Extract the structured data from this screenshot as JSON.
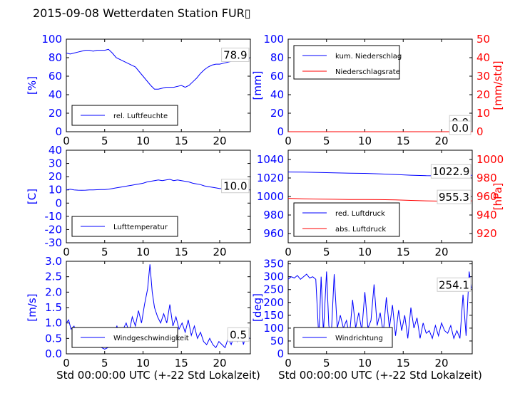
{
  "figure": {
    "title": "2015-09-08 Wetterdaten Station FUR▯",
    "xlabel": "Std 00:00:00 UTC (+-22 Std Lokalzeit)"
  },
  "chart_data": [
    {
      "id": "humidity",
      "type": "line",
      "ylabel": "[%]",
      "ylim": [
        0,
        100
      ],
      "yticks": [
        0,
        20,
        40,
        60,
        80,
        100
      ],
      "xlim": [
        0,
        24
      ],
      "xticks": [
        0,
        5,
        10,
        15,
        20
      ],
      "legend": "lower-left",
      "grid": false,
      "last_value_label": "78.9",
      "series": [
        {
          "name": "rel. Luftfeuchte",
          "color": "#0000ff",
          "x": [
            0,
            0.5,
            1,
            1.5,
            2,
            2.5,
            3,
            3.5,
            4,
            4.5,
            5,
            5.5,
            6,
            6.5,
            7,
            7.5,
            8,
            8.5,
            9,
            9.5,
            10,
            10.5,
            11,
            11.5,
            12,
            12.5,
            13,
            13.5,
            14,
            14.5,
            15,
            15.5,
            16,
            16.5,
            17,
            17.5,
            18,
            18.5,
            19,
            19.5,
            20,
            20.5,
            21,
            21.5,
            22,
            22.5,
            23,
            23.5,
            23.9
          ],
          "y": [
            85,
            84,
            85,
            86,
            87,
            88,
            88,
            87,
            88,
            88,
            88,
            89,
            85,
            80,
            78,
            76,
            74,
            72,
            70,
            65,
            60,
            55,
            50,
            46,
            46,
            47,
            48,
            48,
            48,
            49,
            50,
            48,
            50,
            54,
            58,
            63,
            67,
            70,
            72,
            73,
            73,
            74,
            75,
            76,
            77,
            78,
            78,
            79,
            78.9
          ]
        }
      ]
    },
    {
      "id": "precipitation",
      "type": "line",
      "ylabel": "[mm]",
      "ylim": [
        0,
        100
      ],
      "yticks": [
        0,
        20,
        40,
        60,
        80,
        100
      ],
      "y2label": "[mm/std]",
      "y2lim": [
        0,
        50
      ],
      "y2ticks": [
        0,
        10,
        20,
        30,
        40,
        50
      ],
      "xlim": [
        0,
        24
      ],
      "xticks": [
        0,
        5,
        10,
        15,
        20
      ],
      "legend": "upper-left",
      "grid": false,
      "last_value_label": "0.0",
      "last_value_label_2": "0.0",
      "series": [
        {
          "name": "kum. Niederschlag",
          "color": "#0000ff",
          "axis": "left",
          "x": [
            0,
            24
          ],
          "y": [
            0,
            0
          ]
        },
        {
          "name": "Niederschlagsrate",
          "color": "#ff0000",
          "axis": "right",
          "x": [
            0,
            24
          ],
          "y": [
            0,
            0
          ]
        }
      ]
    },
    {
      "id": "temperature",
      "type": "line",
      "ylabel": "[C]",
      "ylim": [
        -30,
        40
      ],
      "yticks": [
        -30,
        -20,
        -10,
        0,
        10,
        20,
        30,
        40
      ],
      "xlim": [
        0,
        24
      ],
      "xticks": [
        0,
        5,
        10,
        15,
        20
      ],
      "legend": "lower-left",
      "grid": false,
      "last_value_label": "10.0",
      "series": [
        {
          "name": "Lufttemperatur",
          "color": "#0000ff",
          "x": [
            0,
            0.5,
            1,
            1.5,
            2,
            2.5,
            3,
            3.5,
            4,
            4.5,
            5,
            5.5,
            6,
            6.5,
            7,
            7.5,
            8,
            8.5,
            9,
            9.5,
            10,
            10.5,
            11,
            11.5,
            12,
            12.5,
            13,
            13.5,
            14,
            14.5,
            15,
            15.5,
            16,
            16.5,
            17,
            17.5,
            18,
            18.5,
            19,
            19.5,
            20,
            20.5,
            21,
            21.5,
            22,
            22.5,
            23,
            23.5,
            23.9
          ],
          "y": [
            10,
            10.5,
            10,
            9.8,
            9.7,
            9.8,
            10,
            10,
            10.1,
            10.2,
            10.3,
            10.5,
            11,
            11.5,
            12,
            12.5,
            13,
            13.5,
            14,
            14.5,
            15,
            16,
            16.5,
            17,
            17.5,
            17,
            17.5,
            18,
            17,
            17.5,
            17,
            16.5,
            16,
            15,
            14.5,
            14,
            13,
            12.5,
            12,
            11.5,
            11,
            11,
            10.5,
            10.5,
            10.2,
            10,
            10,
            10.1,
            10
          ]
        }
      ]
    },
    {
      "id": "pressure",
      "type": "line",
      "ylabel": "",
      "ylim": [
        950,
        1050
      ],
      "yticks": [
        960,
        980,
        1000,
        1020,
        1040
      ],
      "y2label": "[hPa]",
      "y2lim": [
        910,
        1010
      ],
      "y2ticks": [
        920,
        940,
        960,
        980,
        1000
      ],
      "xlim": [
        0,
        24
      ],
      "xticks": [
        0,
        5,
        10,
        15,
        20
      ],
      "legend": "lower-left",
      "grid": false,
      "last_value_label": "1022.9",
      "last_value_label_2": "955.3",
      "series": [
        {
          "name": "red. Luftdruck",
          "color": "#0000ff",
          "axis": "left",
          "x": [
            0,
            2,
            4,
            6,
            8,
            10,
            12,
            14,
            16,
            18,
            20,
            22,
            24
          ],
          "y": [
            1026.5,
            1026.3,
            1026.0,
            1025.5,
            1025.2,
            1025.0,
            1024.5,
            1023.8,
            1023.0,
            1022.5,
            1022.3,
            1022.6,
            1022.9
          ]
        },
        {
          "name": "abs. Luftdruck",
          "color": "#ff0000",
          "axis": "right",
          "x": [
            0,
            2,
            4,
            6,
            8,
            10,
            12,
            14,
            16,
            18,
            20,
            22,
            24
          ],
          "y": [
            958.0,
            957.5,
            957.2,
            957.0,
            956.8,
            956.8,
            956.6,
            956.3,
            955.8,
            955.3,
            955.0,
            955.2,
            955.3
          ]
        }
      ]
    },
    {
      "id": "windspeed",
      "type": "line",
      "ylabel": "[m/s]",
      "ylim": [
        0,
        3
      ],
      "yticks": [
        0.0,
        0.5,
        1.0,
        1.5,
        2.0,
        2.5,
        3.0
      ],
      "xlim": [
        0,
        24
      ],
      "xticks": [
        0,
        5,
        10,
        15,
        20
      ],
      "legend": "lower-left",
      "grid": false,
      "last_value_label": "0.5",
      "series": [
        {
          "name": "Windgeschwindigkeit",
          "color": "#0000ff",
          "x": [
            0,
            0.3,
            0.6,
            1,
            1.4,
            1.8,
            2.2,
            2.6,
            3,
            3.4,
            3.8,
            4.2,
            4.6,
            5,
            5.4,
            5.8,
            6.2,
            6.6,
            7,
            7.4,
            7.8,
            8.2,
            8.6,
            9,
            9.4,
            9.8,
            10.2,
            10.6,
            10.9,
            11.2,
            11.5,
            11.9,
            12.3,
            12.7,
            13.1,
            13.5,
            13.9,
            14.3,
            14.7,
            15.1,
            15.5,
            15.9,
            16.3,
            16.7,
            17.1,
            17.5,
            17.9,
            18.3,
            18.7,
            19.1,
            19.5,
            19.9,
            20.3,
            20.7,
            21.1,
            21.5,
            21.9,
            22.3,
            22.7,
            23.1,
            23.5,
            23.9
          ],
          "y": [
            1.0,
            1.1,
            0.8,
            0.9,
            0.6,
            0.7,
            0.5,
            0.6,
            0.4,
            0.5,
            0.3,
            0.4,
            0.2,
            0.15,
            0.2,
            0.3,
            0.7,
            0.9,
            0.6,
            0.8,
            1.0,
            0.7,
            1.2,
            0.9,
            1.4,
            1.0,
            1.6,
            2.1,
            2.9,
            2.0,
            1.5,
            1.2,
            1.0,
            1.3,
            1.0,
            1.6,
            0.9,
            1.2,
            0.8,
            1.0,
            0.7,
            1.1,
            0.6,
            0.9,
            0.5,
            0.7,
            0.4,
            0.3,
            0.5,
            0.3,
            0.2,
            0.4,
            0.3,
            0.2,
            0.5,
            0.3,
            0.6,
            0.4,
            0.8,
            0.3,
            0.7,
            0.5
          ]
        }
      ]
    },
    {
      "id": "winddirection",
      "type": "line",
      "ylabel": "[deg]",
      "ylim": [
        0,
        360
      ],
      "yticks": [
        0,
        50,
        100,
        150,
        200,
        250,
        300,
        350
      ],
      "xlim": [
        0,
        24
      ],
      "xticks": [
        0,
        5,
        10,
        15,
        20
      ],
      "legend": "lower-left",
      "grid": false,
      "last_value_label": "254.1",
      "series": [
        {
          "name": "Windrichtung",
          "color": "#0000ff",
          "x": [
            0,
            0.4,
            0.8,
            1.2,
            1.6,
            2.0,
            2.4,
            2.8,
            3.2,
            3.6,
            4.0,
            4.3,
            4.6,
            5.0,
            5.3,
            5.6,
            6.0,
            6.4,
            6.8,
            7.2,
            7.6,
            8.0,
            8.4,
            8.8,
            9.2,
            9.6,
            10.0,
            10.4,
            10.8,
            11.2,
            11.6,
            12.0,
            12.4,
            12.8,
            13.2,
            13.6,
            14.0,
            14.4,
            14.8,
            15.2,
            15.6,
            16.0,
            16.4,
            16.8,
            17.2,
            17.6,
            18.0,
            18.4,
            18.8,
            19.2,
            19.6,
            20.0,
            20.4,
            20.8,
            21.2,
            21.6,
            22.0,
            22.4,
            22.8,
            23.2,
            23.6,
            23.9
          ],
          "y": [
            290,
            300,
            295,
            305,
            290,
            300,
            310,
            295,
            300,
            290,
            60,
            300,
            80,
            320,
            110,
            60,
            310,
            100,
            150,
            100,
            130,
            70,
            210,
            100,
            160,
            90,
            240,
            100,
            130,
            270,
            110,
            160,
            80,
            220,
            100,
            190,
            70,
            170,
            90,
            150,
            60,
            180,
            100,
            140,
            60,
            120,
            80,
            90,
            60,
            110,
            70,
            120,
            90,
            80,
            110,
            60,
            90,
            60,
            230,
            70,
            320,
            254
          ]
        }
      ]
    }
  ]
}
